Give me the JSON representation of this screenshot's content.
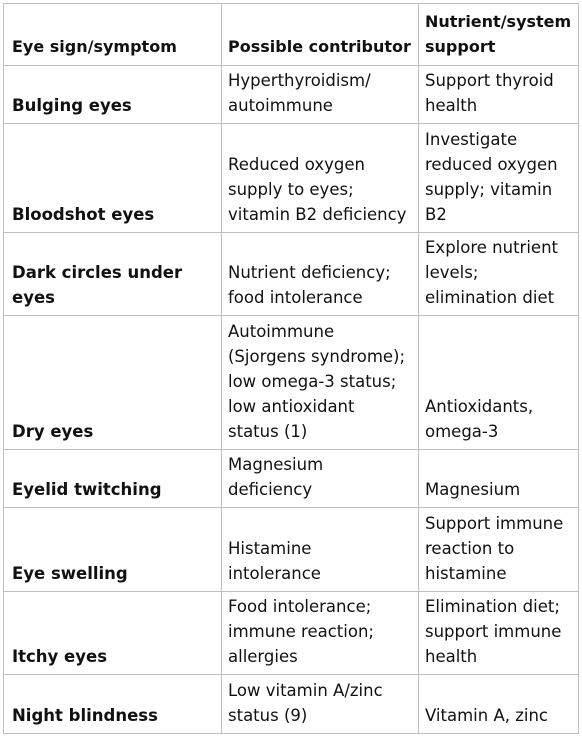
{
  "table": {
    "headers": [
      "Eye sign/symptom",
      "Possible contributor",
      "Nutrient/system support"
    ],
    "rows": [
      {
        "sign": "Bulging eyes",
        "contributor": [
          "Hyperthyroidism/",
          "autoimmune"
        ],
        "support": [
          "Support thyroid",
          "health"
        ]
      },
      {
        "sign": "Bloodshot eyes",
        "contributor": [
          "Reduced oxygen",
          "supply to eyes;",
          "vitamin B2 deficiency"
        ],
        "support": [
          "Investigate",
          "reduced oxygen",
          "supply; vitamin",
          "B2"
        ]
      },
      {
        "sign": "Dark circles under eyes",
        "contributor": [
          "Nutrient deficiency;",
          "food intolerance"
        ],
        "support": [
          "Explore nutrient",
          "levels;",
          "elimination diet"
        ]
      },
      {
        "sign": "Dry eyes",
        "contributor": [
          "Autoimmune",
          "(Sjorgens syndrome);",
          "low omega-3 status;",
          "low antioxidant",
          "status (1)"
        ],
        "support": [
          "Antioxidants,",
          "omega-3"
        ]
      },
      {
        "sign": "Eyelid twitching",
        "contributor": [
          "Magnesium",
          "deficiency"
        ],
        "support": [
          "Magnesium"
        ]
      },
      {
        "sign": "Eye swelling",
        "contributor": [
          "Histamine",
          "intolerance"
        ],
        "support": [
          "Support immune",
          "reaction to",
          "histamine"
        ]
      },
      {
        "sign": "Itchy eyes",
        "contributor": [
          "Food intolerance;",
          "immune reaction;",
          "allergies"
        ],
        "support": [
          "Elimination diet;",
          "support immune",
          "health"
        ]
      },
      {
        "sign": "Night blindness",
        "contributor": [
          "Low vitamin A/zinc",
          "status (9)"
        ],
        "support": [
          "Vitamin A, zinc"
        ]
      }
    ]
  }
}
